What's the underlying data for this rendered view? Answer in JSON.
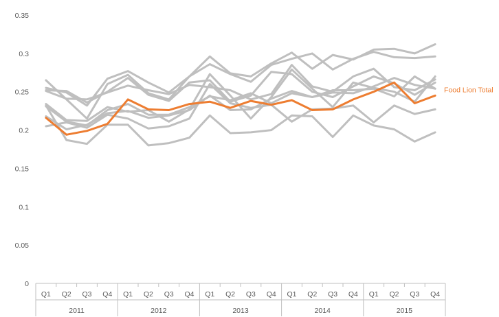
{
  "chart_data": {
    "type": "line",
    "title": "",
    "xlabel": "",
    "ylabel": "",
    "ylim": [
      0,
      0.35
    ],
    "yticks": [
      "0",
      "0.05",
      "0.1",
      "0.15",
      "0.2",
      "0.25",
      "0.3",
      "0.35"
    ],
    "grid": false,
    "legend": "none",
    "years": [
      "2011",
      "2012",
      "2013",
      "2014",
      "2015"
    ],
    "quarters": [
      "Q1",
      "Q2",
      "Q3",
      "Q4"
    ],
    "categories": [
      "2011 Q1",
      "2011 Q2",
      "2011 Q3",
      "2011 Q4",
      "2012 Q1",
      "2012 Q2",
      "2012 Q3",
      "2012 Q4",
      "2013 Q1",
      "2013 Q2",
      "2013 Q3",
      "2013 Q4",
      "2014 Q1",
      "2014 Q2",
      "2014 Q3",
      "2014 Q4",
      "2015 Q1",
      "2015 Q2",
      "2015 Q3",
      "2015 Q4"
    ],
    "colors": {
      "highlight": "#ED7D31",
      "others": "#BFBFBF",
      "axis": "#BFBFBF",
      "text": "#595959"
    },
    "series": [
      {
        "values": [
          0.265,
          0.24,
          0.215,
          0.26,
          0.272,
          0.248,
          0.24,
          0.27,
          0.296,
          0.274,
          0.27,
          0.287,
          0.301,
          0.28,
          0.298,
          0.292,
          0.305,
          0.306,
          0.3,
          0.312
        ]
      },
      {
        "values": [
          0.255,
          0.249,
          0.232,
          0.267,
          0.277,
          0.262,
          0.249,
          0.27,
          0.286,
          0.273,
          0.263,
          0.285,
          0.293,
          0.3,
          0.279,
          0.293,
          0.302,
          0.295,
          0.294,
          0.296
        ]
      },
      {
        "values": [
          0.251,
          0.241,
          0.24,
          0.249,
          0.258,
          0.252,
          0.247,
          0.259,
          0.256,
          0.252,
          0.24,
          0.247,
          0.285,
          0.257,
          0.25,
          0.27,
          0.28,
          0.256,
          0.252,
          0.266
        ]
      },
      {
        "values": [
          0.252,
          0.251,
          0.236,
          0.25,
          0.268,
          0.246,
          0.238,
          0.262,
          0.265,
          0.237,
          0.245,
          0.276,
          0.273,
          0.25,
          0.243,
          0.257,
          0.27,
          0.261,
          0.246,
          0.262
        ]
      },
      {
        "values": [
          0.234,
          0.213,
          0.212,
          0.23,
          0.224,
          0.226,
          0.211,
          0.227,
          0.273,
          0.245,
          0.215,
          0.243,
          0.279,
          0.254,
          0.23,
          0.262,
          0.255,
          0.25,
          0.237,
          0.27
        ]
      },
      {
        "values": [
          0.231,
          0.211,
          0.206,
          0.226,
          0.234,
          0.22,
          0.22,
          0.23,
          0.244,
          0.239,
          0.248,
          0.235,
          0.248,
          0.243,
          0.252,
          0.252,
          0.254,
          0.244,
          0.27,
          0.254
        ]
      },
      {
        "values": [
          0.218,
          0.201,
          0.207,
          0.222,
          0.225,
          0.216,
          0.219,
          0.226,
          0.245,
          0.226,
          0.227,
          0.241,
          0.251,
          0.243,
          0.249,
          0.248,
          0.257,
          0.268,
          0.259,
          0.254
        ]
      },
      {
        "values": [
          0.205,
          0.21,
          0.203,
          0.22,
          0.215,
          0.202,
          0.205,
          0.215,
          0.26,
          0.235,
          0.229,
          0.233,
          0.211,
          0.227,
          0.228,
          0.232,
          0.21,
          0.232,
          0.221,
          0.227
        ]
      },
      {
        "values": [
          0.232,
          0.187,
          0.182,
          0.207,
          0.207,
          0.18,
          0.183,
          0.19,
          0.219,
          0.196,
          0.197,
          0.2,
          0.219,
          0.218,
          0.191,
          0.219,
          0.206,
          0.201,
          0.185,
          0.197
        ]
      },
      {
        "name": "Food Lion Total",
        "highlight": true,
        "values": [
          0.216,
          0.194,
          0.199,
          0.208,
          0.24,
          0.227,
          0.226,
          0.234,
          0.237,
          0.229,
          0.238,
          0.233,
          0.239,
          0.226,
          0.227,
          0.24,
          0.25,
          0.262,
          0.235,
          0.245
        ]
      }
    ]
  }
}
